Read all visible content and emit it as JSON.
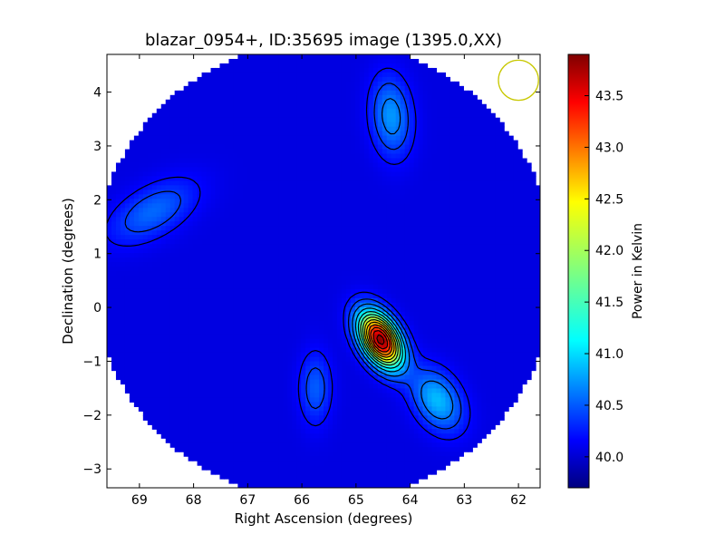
{
  "chart_data": {
    "type": "heatmap",
    "title": "blazar_0954+, ID:35695 image (1395.0,XX)",
    "xlabel": "Right Ascension (degrees)",
    "ylabel": "Declination (degrees)",
    "xlim": [
      69.6,
      61.6
    ],
    "ylim": [
      -3.35,
      4.7
    ],
    "x_ticks": [
      69,
      68,
      67,
      66,
      65,
      64,
      63,
      62
    ],
    "y_ticks": [
      -3,
      -2,
      -1,
      0,
      1,
      2,
      3,
      4
    ],
    "colorbar": {
      "label": "Power in Kelvin",
      "range": [
        39.7,
        43.9
      ],
      "ticks": [
        "40.0",
        "40.5",
        "41.0",
        "41.5",
        "42.0",
        "42.5",
        "43.0",
        "43.5"
      ],
      "tick_values": [
        40.0,
        40.5,
        41.0,
        41.5,
        42.0,
        42.5,
        43.0,
        43.5
      ],
      "colormap": "jet"
    },
    "background_level": 40.1,
    "sources": [
      {
        "ra": 64.55,
        "dec": -0.6,
        "peak": 43.85,
        "sigma_major": 0.38,
        "sigma_minor": 0.22,
        "pa_deg": -30
      },
      {
        "ra": 63.5,
        "dec": -1.72,
        "peak": 41.0,
        "sigma_major": 0.42,
        "sigma_minor": 0.28,
        "pa_deg": -30
      },
      {
        "ra": 64.35,
        "dec": 3.55,
        "peak": 40.85,
        "sigma_major": 0.5,
        "sigma_minor": 0.25,
        "pa_deg": -5
      },
      {
        "ra": 68.75,
        "dec": 1.78,
        "peak": 40.65,
        "sigma_major": 0.6,
        "sigma_minor": 0.3,
        "pa_deg": 60
      },
      {
        "ra": 65.75,
        "dec": -1.5,
        "peak": 40.6,
        "sigma_major": 0.45,
        "sigma_minor": 0.2,
        "pa_deg": 0
      }
    ],
    "contour_levels": [
      40.25,
      40.45,
      40.7,
      41.0,
      41.3,
      41.6,
      41.9,
      42.2,
      42.5,
      42.8,
      43.1,
      43.4,
      43.7
    ],
    "beam_marker": {
      "ra": 62.0,
      "dec": 4.22,
      "radius_deg": 0.37,
      "color": "#c8c800"
    },
    "sky_mask": "circular",
    "grid": false,
    "legend": "none"
  }
}
